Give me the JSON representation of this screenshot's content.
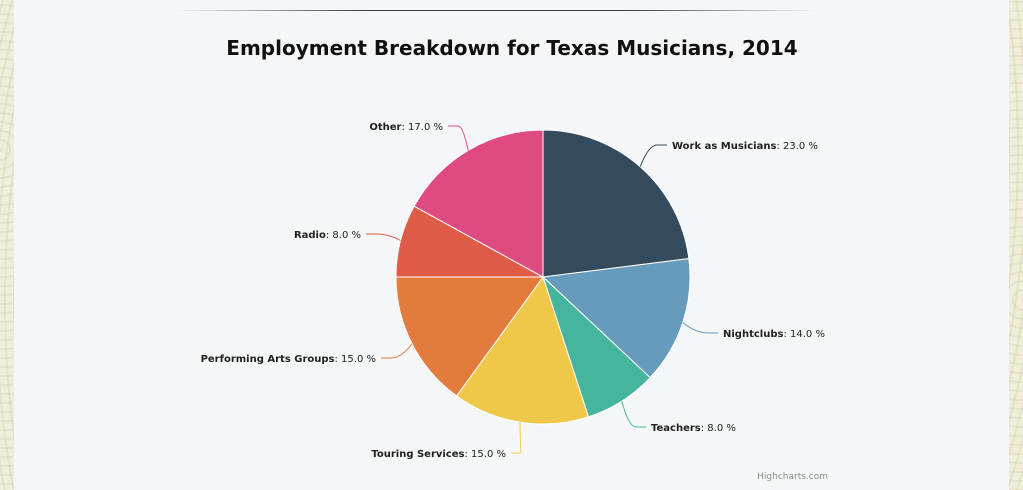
{
  "chart_data": {
    "type": "pie",
    "title": "Employment Breakdown for Texas Musicians, 2014",
    "value_suffix": " %",
    "slices": [
      {
        "name": "Work as Musicians",
        "value": 23.0,
        "value_label": "23.0",
        "color": "#344b5d"
      },
      {
        "name": "Nightclubs",
        "value": 14.0,
        "value_label": "14.0",
        "color": "#669bbb"
      },
      {
        "name": "Teachers",
        "value": 8.0,
        "value_label": "8.0",
        "color": "#45b59e"
      },
      {
        "name": "Touring Services",
        "value": 15.0,
        "value_label": "15.0",
        "color": "#efc84a"
      },
      {
        "name": "Performing Arts Groups",
        "value": 15.0,
        "value_label": "15.0",
        "color": "#e37b3d"
      },
      {
        "name": "Radio",
        "value": 8.0,
        "value_label": "8.0",
        "color": "#e05b47"
      },
      {
        "name": "Other",
        "value": 17.0,
        "value_label": "17.0",
        "color": "#df4a80"
      }
    ]
  },
  "credits": "Highcharts.com"
}
